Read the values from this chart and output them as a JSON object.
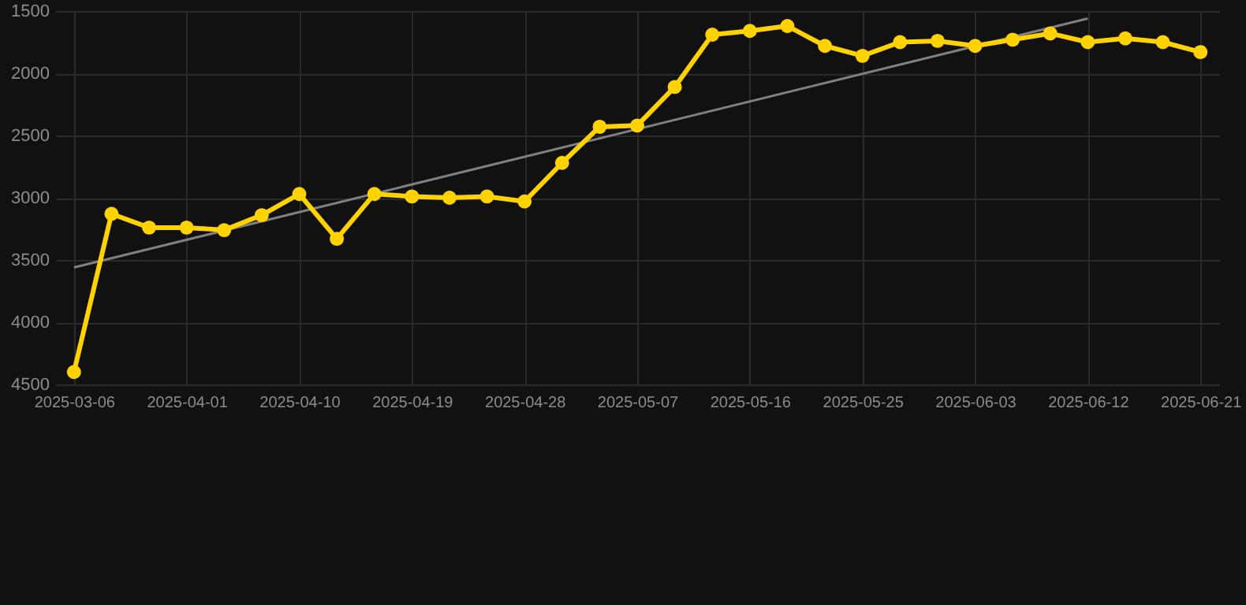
{
  "chart_data": {
    "type": "line",
    "categories": [
      "2025-03-06",
      null,
      null,
      "2025-04-01",
      null,
      null,
      "2025-04-10",
      null,
      null,
      "2025-04-19",
      null,
      null,
      "2025-04-28",
      null,
      null,
      "2025-05-07",
      null,
      null,
      "2025-05-16",
      null,
      null,
      "2025-05-25",
      null,
      null,
      "2025-06-03",
      null,
      null,
      "2025-06-12",
      null,
      null,
      "2025-06-21"
    ],
    "series": [
      {
        "color": "#ffd200",
        "marker": "circle",
        "values": [
          4400,
          3130,
          3240,
          3240,
          3260,
          3140,
          2970,
          3330,
          2970,
          2990,
          3000,
          2990,
          3030,
          2720,
          2430,
          2420,
          2110,
          1690,
          1660,
          1620,
          1780,
          1860,
          1750,
          1740,
          1780,
          1730,
          1680,
          1750,
          1720,
          1750,
          1830
        ]
      },
      {
        "color": "#808080",
        "marker": "none",
        "values": [
          3560,
          null,
          null,
          null,
          null,
          null,
          null,
          null,
          null,
          null,
          null,
          null,
          null,
          null,
          null,
          null,
          null,
          null,
          null,
          null,
          null,
          null,
          null,
          null,
          null,
          null,
          null,
          1560,
          null,
          null,
          null
        ]
      }
    ],
    "ylim": [
      4500,
      1500
    ],
    "yticks": [
      1500,
      2000,
      2500,
      3000,
      3500,
      4000,
      4500
    ],
    "grid": true
  }
}
